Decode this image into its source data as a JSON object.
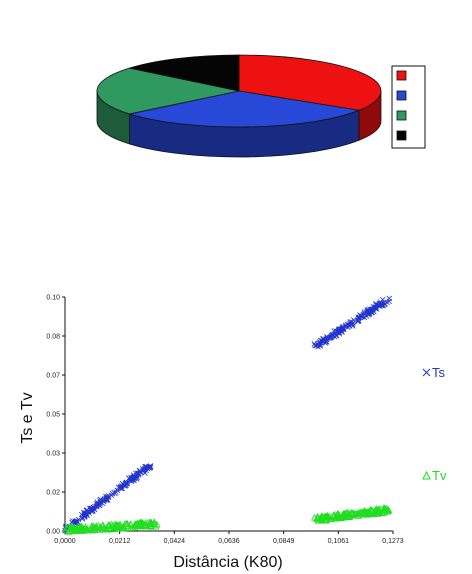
{
  "chart_data": [
    {
      "type": "pie",
      "style": "3d",
      "values": [
        0.34,
        0.3,
        0.22,
        0.14
      ],
      "colors": [
        "#ee1111",
        "#2848d8",
        "#2f9960",
        "#050505"
      ],
      "legend": {
        "position": "right",
        "labels": [
          "",
          "",
          "",
          ""
        ]
      }
    },
    {
      "type": "scatter",
      "xlabel": "Distância (K80)",
      "ylabel": "Ts e Tv",
      "xlim": [
        0,
        0.1273
      ],
      "ylim": [
        0,
        0.1
      ],
      "xticks": [
        "0,0000",
        "0,0212",
        "0,0424",
        "0,0636",
        "0,0849",
        "0,1061",
        "0,1273"
      ],
      "yticks": [
        "0.00",
        "0.02",
        "0.03",
        "0.05",
        "0.07",
        "0.08",
        "0.10"
      ],
      "legend": {
        "position": "right",
        "labels": [
          "Ts",
          "Tv"
        ]
      },
      "series": [
        {
          "name": "Ts",
          "marker": "x",
          "color": "#2233cc",
          "clusters": [
            {
              "x_range": [
                0.0005,
                0.033
              ],
              "y_at_start": 0.001,
              "y_at_end": 0.028
            },
            {
              "x_range": [
                0.0975,
                0.1255
              ],
              "y_at_start": 0.079,
              "y_at_end": 0.099
            }
          ]
        },
        {
          "name": "Tv",
          "marker": "triangle",
          "color": "#22dd22",
          "clusters": [
            {
              "x_range": [
                0.0005,
                0.036
              ],
              "y_at_start": 0.0005,
              "y_at_end": 0.003
            },
            {
              "x_range": [
                0.0975,
                0.1255
              ],
              "y_at_start": 0.005,
              "y_at_end": 0.009
            }
          ]
        }
      ]
    }
  ]
}
